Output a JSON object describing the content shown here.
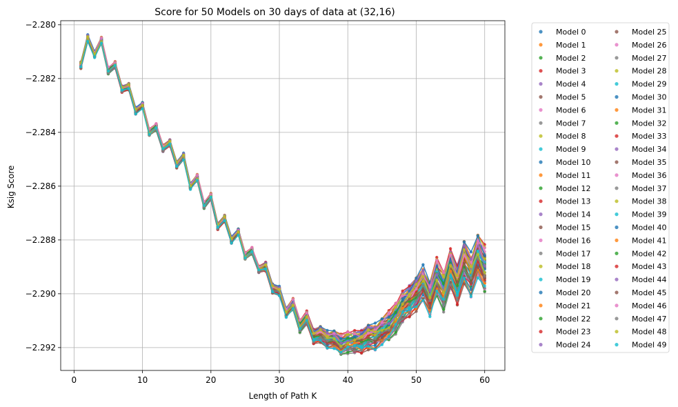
{
  "chart_data": {
    "type": "line",
    "title": "Score for 50 Models on 30 days of data at (32,16)",
    "xlabel": "Length of Path K",
    "ylabel": "Ksig Score",
    "xlim": [
      -1.95,
      62.95
    ],
    "ylim": [
      -2.29285,
      -2.27985
    ],
    "xticks": [
      0,
      10,
      20,
      30,
      40,
      50,
      60
    ],
    "yticks": [
      -2.28,
      -2.282,
      -2.284,
      -2.286,
      -2.288,
      -2.29,
      -2.292
    ],
    "xtick_labels": [
      "0",
      "10",
      "20",
      "30",
      "40",
      "50",
      "60"
    ],
    "ytick_labels": [
      "−2.280",
      "−2.282",
      "−2.284",
      "−2.286",
      "−2.288",
      "−2.290",
      "−2.292"
    ],
    "grid": true,
    "legend_location": "outside-right",
    "legend_columns": 2,
    "x": [
      1,
      2,
      3,
      4,
      5,
      6,
      7,
      8,
      9,
      10,
      11,
      12,
      13,
      14,
      15,
      16,
      17,
      18,
      19,
      20,
      21,
      22,
      23,
      24,
      25,
      26,
      27,
      28,
      29,
      30,
      31,
      32,
      33,
      34,
      35,
      36,
      37,
      38,
      39,
      40,
      41,
      42,
      43,
      44,
      45,
      46,
      47,
      48,
      49,
      50,
      51,
      52,
      53,
      54,
      55,
      56,
      57,
      58,
      59,
      60
    ],
    "mean_curve": [
      -2.2815,
      -2.2805,
      -2.2811,
      -2.2806,
      -2.2817,
      -2.2815,
      -2.2824,
      -2.2823,
      -2.2832,
      -2.283,
      -2.284,
      -2.2838,
      -2.2846,
      -2.2844,
      -2.2852,
      -2.2849,
      -2.286,
      -2.2857,
      -2.2867,
      -2.2864,
      -2.2875,
      -2.2872,
      -2.288,
      -2.2877,
      -2.2886,
      -2.2884,
      -2.2891,
      -2.289,
      -2.2898,
      -2.2899,
      -2.2907,
      -2.2904,
      -2.2912,
      -2.2909,
      -2.2916,
      -2.2915,
      -2.2917,
      -2.2917,
      -2.2919,
      -2.2918,
      -2.2918,
      -2.2918,
      -2.2916,
      -2.2916,
      -2.2914,
      -2.2912,
      -2.2909,
      -2.2905,
      -2.2903,
      -2.29,
      -2.2896,
      -2.2902,
      -2.2894,
      -2.2899,
      -2.2891,
      -2.2897,
      -2.2888,
      -2.2893,
      -2.2886,
      -2.2891
    ],
    "series_offsets": [
      0.00012,
      -0.00016,
      5e-05,
      -9e-05,
      0.00019,
      -3e-05,
      0.00014,
      -0.00021,
      8e-05,
      0.0,
      -0.00012,
      0.00017,
      -6e-05,
      0.00021,
      -0.00015,
      3e-05,
      -0.00019,
      0.0001,
      -2e-05,
      0.00016,
      -0.00011,
      6e-05,
      -0.00018,
      0.0002,
      -7e-05,
      0.00011,
      -0.00014,
      2e-05,
      0.00018,
      -0.0001,
      9e-05,
      -0.00017,
      4e-05,
      -5e-05,
      0.00015,
      -0.0002,
      7e-05,
      -0.00013,
      0.00013,
      -1e-05,
      0.0002,
      -8e-05,
      1e-05,
      -0.00016,
      0.00012,
      -4e-05,
      0.00018,
      -0.00012,
      6e-05,
      -0.00019
    ],
    "series_names": [
      "Model 0",
      "Model 1",
      "Model 2",
      "Model 3",
      "Model 4",
      "Model 5",
      "Model 6",
      "Model 7",
      "Model 8",
      "Model 9",
      "Model 10",
      "Model 11",
      "Model 12",
      "Model 13",
      "Model 14",
      "Model 15",
      "Model 16",
      "Model 17",
      "Model 18",
      "Model 19",
      "Model 20",
      "Model 21",
      "Model 22",
      "Model 23",
      "Model 24",
      "Model 25",
      "Model 26",
      "Model 27",
      "Model 28",
      "Model 29",
      "Model 30",
      "Model 31",
      "Model 32",
      "Model 33",
      "Model 34",
      "Model 35",
      "Model 36",
      "Model 37",
      "Model 38",
      "Model 39",
      "Model 40",
      "Model 41",
      "Model 42",
      "Model 43",
      "Model 44",
      "Model 45",
      "Model 46",
      "Model 47",
      "Model 48",
      "Model 49"
    ],
    "colors": [
      "#1f77b4",
      "#ff7f0e",
      "#2ca02c",
      "#d62728",
      "#9467bd",
      "#8c564b",
      "#e377c2",
      "#7f7f7f",
      "#bcbd22",
      "#17becf"
    ]
  }
}
